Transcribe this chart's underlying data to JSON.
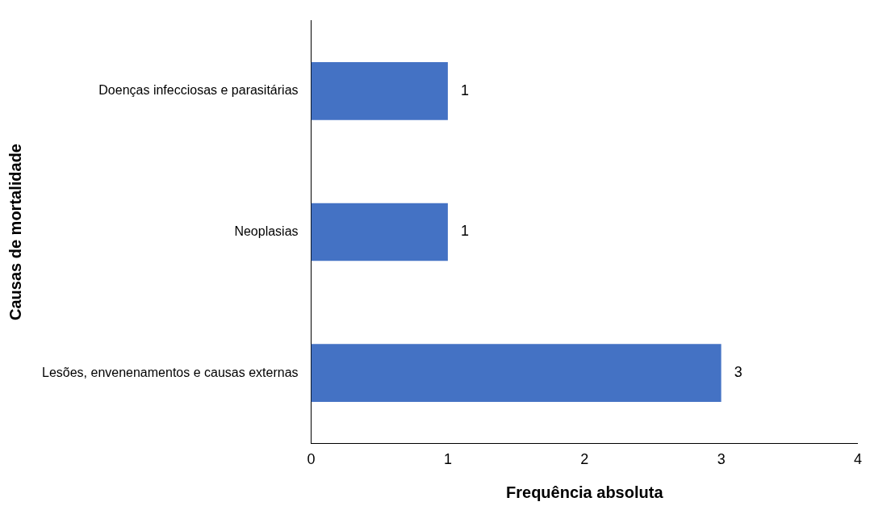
{
  "chart_data": {
    "type": "bar",
    "orientation": "horizontal",
    "xlabel": "Frequência absoluta",
    "ylabel": "Causas de mortalidade",
    "categories": [
      "Doenças infecciosas e parasitárias",
      "Neoplasias",
      "Lesões, envenenamentos e causas externas"
    ],
    "values": [
      1,
      1,
      3
    ],
    "color": "#4472c4",
    "xlim": [
      0,
      4
    ],
    "xticks": [
      0,
      1,
      2,
      3,
      4
    ],
    "grid": false,
    "legend": false,
    "data_labels": true
  }
}
